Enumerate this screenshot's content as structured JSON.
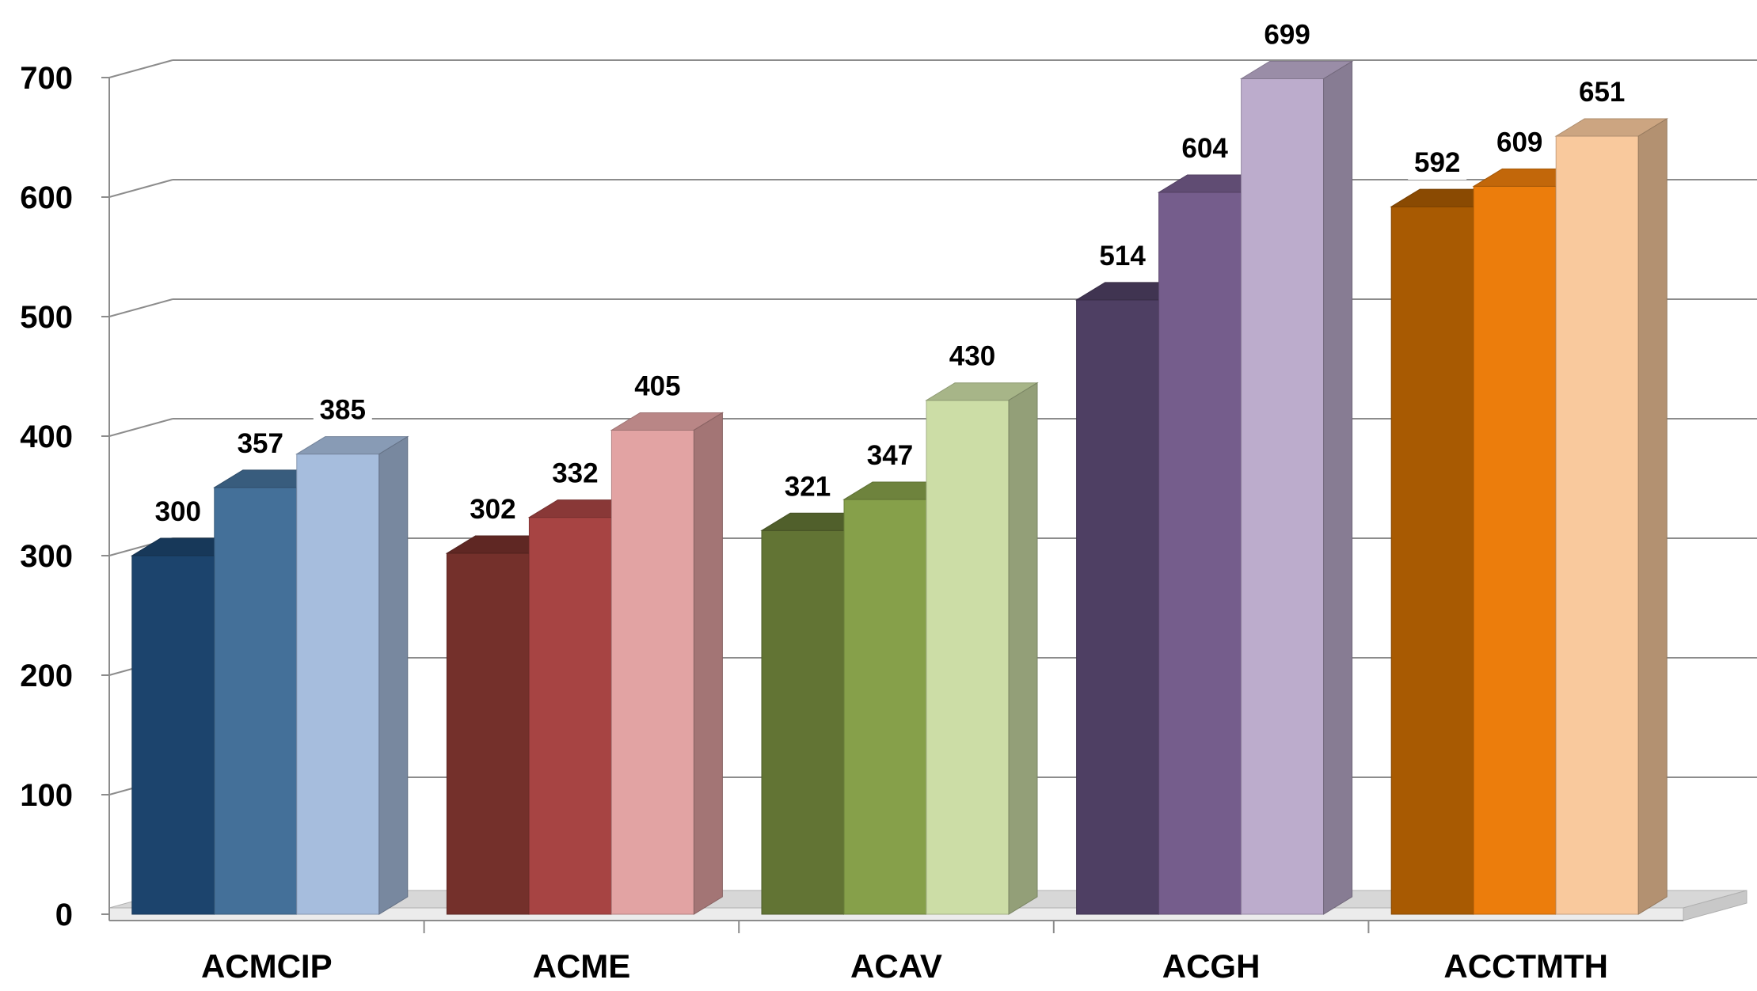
{
  "chart_data": {
    "type": "bar",
    "categories": [
      "ACMCIP",
      "ACME",
      "ACAV",
      "ACGH",
      "ACCTMTH"
    ],
    "series": [
      {
        "values": [
          300,
          302,
          321,
          514,
          592
        ]
      },
      {
        "values": [
          357,
          332,
          347,
          604,
          609
        ]
      },
      {
        "values": [
          385,
          405,
          430,
          699,
          651
        ]
      }
    ],
    "ylim": [
      0,
      700
    ],
    "y_ticks": [
      0,
      100,
      200,
      300,
      400,
      500,
      600,
      700
    ],
    "grid": true,
    "projection": "3d",
    "data_labels": true,
    "colors": [
      [
        "#1c446d",
        "#447099",
        "#a6bddd"
      ],
      [
        "#74302b",
        "#a74443",
        "#e2a3a3"
      ],
      [
        "#627434",
        "#86a04a",
        "#ccdda6"
      ],
      [
        "#4e3f63",
        "#755d8c",
        "#bcaccc"
      ],
      [
        "#a85a02",
        "#ec7d0c",
        "#f9c99d"
      ]
    ]
  }
}
